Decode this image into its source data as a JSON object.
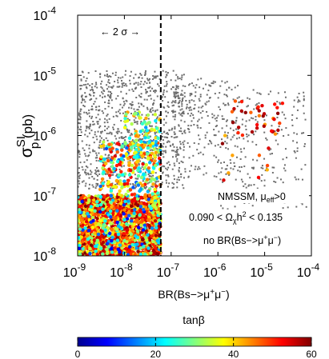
{
  "chart_data": {
    "type": "scatter",
    "x_scale": "log",
    "y_scale": "log",
    "xlim": [
      1e-09,
      0.0001
    ],
    "ylim": [
      1e-08,
      0.0001
    ],
    "x_ticks": [
      {
        "value": 1e-09,
        "base": "10",
        "exp": "-9"
      },
      {
        "value": 1e-08,
        "base": "10",
        "exp": "-8"
      },
      {
        "value": 1e-07,
        "base": "10",
        "exp": "-7"
      },
      {
        "value": 1e-06,
        "base": "10",
        "exp": "-6"
      },
      {
        "value": 1e-05,
        "base": "10",
        "exp": "-5"
      },
      {
        "value": 0.0001,
        "base": "10",
        "exp": "-4"
      }
    ],
    "y_ticks": [
      {
        "value": 1e-08,
        "base": "10",
        "exp": "-8"
      },
      {
        "value": 1e-07,
        "base": "10",
        "exp": "-7"
      },
      {
        "value": 1e-06,
        "base": "10",
        "exp": "-6"
      },
      {
        "value": 1e-05,
        "base": "10",
        "exp": "-5"
      },
      {
        "value": 0.0001,
        "base": "10",
        "exp": "-4"
      }
    ],
    "xlabel": {
      "main": "BR(Bs−>μ",
      "sup": "+",
      "mid": "μ",
      "sup2": "−",
      "end": ")"
    },
    "ylabel": {
      "sigma": "σ",
      "sup": "SI",
      "sub": "p",
      "unit": " (pb)"
    },
    "bound_line": {
      "x": 6e-08,
      "style": "dashed"
    },
    "bound_label": "← 2 σ →",
    "annotations": [
      {
        "id": "model",
        "text": "NMSSM, μ",
        "sub": "eff",
        "tail": ">0"
      },
      {
        "id": "relic",
        "pre": "0.090 < Ω",
        "sub": "χ",
        "mid": "h",
        "sup": "2",
        "tail": " < 0.135"
      },
      {
        "id": "constraint",
        "pre": "no BR(Bs−>μ",
        "sup": "+",
        "mid": "μ",
        "sup2": "−",
        "tail": ")"
      }
    ],
    "colorbar": {
      "title": "tanβ",
      "range": [
        0,
        60
      ],
      "ticks": [
        0,
        20,
        40,
        60
      ],
      "tick_labels": [
        "0",
        "20",
        "40",
        "60"
      ],
      "colormap": "jet",
      "colors": [
        "#00008f",
        "#0000ff",
        "#0080ff",
        "#00ffff",
        "#80ff80",
        "#ffff00",
        "#ff8000",
        "#ff0000",
        "#800000"
      ]
    },
    "series": [
      {
        "kind": "grey",
        "color": "#6e6e6e",
        "clusters": [
          {
            "x": [
              1e-09,
              2e-07
            ],
            "y": [
              1.3e-07,
              1.2e-05
            ],
            "n": 1000
          },
          {
            "x": [
              2e-07,
              3e-06
            ],
            "y": [
              2e-07,
              8e-06
            ],
            "n": 160
          },
          {
            "x": [
              1e-06,
              6e-06
            ],
            "y": [
              4e-08,
              2e-06
            ],
            "n": 70
          },
          {
            "x": [
              3e-06,
              8e-05
            ],
            "y": [
              5e-08,
              6e-06
            ],
            "n": 170
          },
          {
            "x": [
              1e-07,
              1e-06
            ],
            "y": [
              1e-06,
              9e-06
            ],
            "n": 60
          }
        ]
      },
      {
        "kind": "tanb",
        "clusters": [
          {
            "x": [
              1e-09,
              6e-08
            ],
            "y": [
              1e-08,
              1e-07
            ],
            "t": [
              30,
              60
            ],
            "n": 1700
          },
          {
            "x": [
              1e-09,
              6e-08
            ],
            "y": [
              1e-08,
              1e-07
            ],
            "t": [
              5,
              35
            ],
            "n": 180
          },
          {
            "x": [
              3e-09,
              6e-08
            ],
            "y": [
              1e-07,
              8e-07
            ],
            "t": [
              10,
              55
            ],
            "n": 260
          },
          {
            "x": [
              1e-08,
              6e-08
            ],
            "y": [
              4e-07,
              2.5e-06
            ],
            "t": [
              15,
              45
            ],
            "n": 90
          },
          {
            "x": [
              2e-06,
              3e-05
            ],
            "y": [
              1e-06,
              4e-06
            ],
            "t": [
              40,
              60
            ],
            "n": 35
          },
          {
            "x": [
              1e-06,
              2e-05
            ],
            "y": [
              1.5e-07,
              1e-06
            ],
            "t": [
              35,
              60
            ],
            "n": 10
          }
        ]
      }
    ]
  }
}
